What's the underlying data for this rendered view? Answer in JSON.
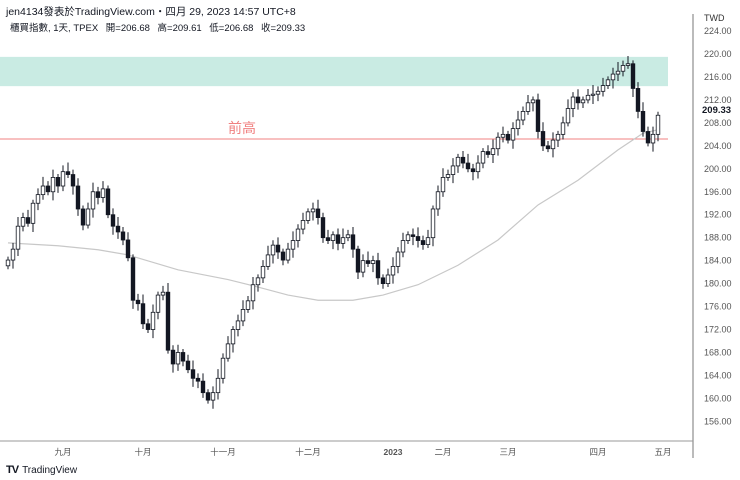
{
  "header": {
    "publisher": "jen4134發表於TradingView.com・四月 29, 2023 14:57 UTC+8",
    "symbol": "櫃買指數, 1天, TPEX",
    "open": "開=206.68",
    "high": "高=209.61",
    "low": "低=206.68",
    "close": "收=209.33"
  },
  "footer": {
    "brand": "TradingView"
  },
  "colors": {
    "zone": "#c9ebe3",
    "resistance": "#f08080",
    "up_body": "#ffffff",
    "down_body": "#131722",
    "ma": "#c8c8c8"
  },
  "chart_data": {
    "type": "candlestick",
    "currency": "TWD",
    "ylim": [
      154,
      224
    ],
    "y_ticks": [
      "224.00",
      "220.00",
      "216.00",
      "212.00",
      "208.00",
      "204.00",
      "200.00",
      "196.00",
      "192.00",
      "188.00",
      "184.00",
      "180.00",
      "176.00",
      "172.00",
      "168.00",
      "164.00",
      "160.00",
      "156.00"
    ],
    "last_price_label": "209.33",
    "x_labels": [
      "九月",
      "十月",
      "十一月",
      "十二月",
      "2023",
      "二月",
      "三月",
      "四月",
      "五月"
    ],
    "x_label_index": [
      11,
      27,
      43,
      60,
      77,
      87,
      100,
      118,
      131
    ],
    "closes": [
      184.1,
      186,
      190,
      191.5,
      190.5,
      194,
      195.5,
      197,
      196,
      198.5,
      197,
      199.5,
      199,
      197,
      193,
      190.2,
      193,
      196,
      195,
      196.5,
      192,
      190,
      189,
      187.6,
      184.5,
      177.1,
      176.5,
      173,
      172,
      175,
      178,
      178.5,
      168.4,
      166,
      168,
      166.5,
      165,
      163.5,
      163,
      161,
      159.7,
      161,
      163.5,
      167,
      169.5,
      172,
      173.5,
      175.5,
      177,
      179.8,
      181,
      183,
      185,
      186.7,
      185.5,
      184.1,
      186,
      187.5,
      189.5,
      191,
      192.5,
      193,
      191.5,
      188,
      187.5,
      188.5,
      187,
      188,
      188.5,
      186,
      182,
      184,
      183.5,
      184,
      181,
      180,
      181.5,
      183,
      185.5,
      187.5,
      188.5,
      188.2,
      187.5,
      186.8,
      188,
      193,
      196,
      198.5,
      199,
      200.5,
      202,
      201,
      200,
      199.5,
      201,
      203,
      202.5,
      203.5,
      205.5,
      206,
      205,
      207,
      208.5,
      210,
      211.5,
      212,
      206.5,
      204,
      203.5,
      205,
      206,
      208,
      210.5,
      212.5,
      211.5,
      212,
      212.8,
      213,
      213.5,
      214.5,
      215.5,
      216.5,
      217,
      218,
      218.3,
      214,
      210,
      206.5,
      204.5,
      206,
      209.33
    ],
    "moving_average": {
      "index": [
        0,
        10,
        18,
        24,
        34,
        44,
        50,
        56,
        62,
        69,
        75,
        82,
        90,
        98,
        106,
        114,
        122,
        127,
        130
      ],
      "values": [
        187.1,
        186.6,
        185.9,
        185.0,
        182.4,
        180.7,
        179.4,
        178.0,
        177.1,
        177.1,
        178.0,
        179.8,
        183.2,
        187.6,
        193.7,
        198.0,
        203.3,
        206.2,
        206.8
      ]
    },
    "zone": {
      "from": 214.4,
      "to": 219.5
    },
    "resistance": {
      "price": 205.2,
      "label": "前高"
    }
  }
}
